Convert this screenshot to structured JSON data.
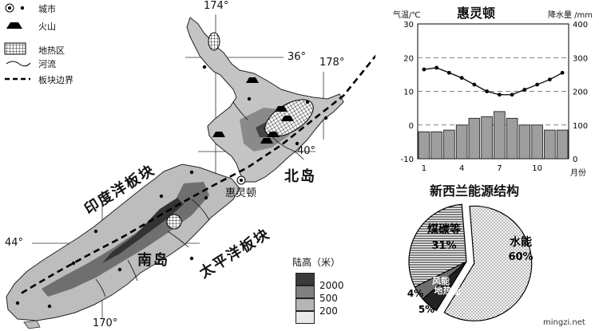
{
  "map": {
    "legend": {
      "city": "城市",
      "volcano": "火山",
      "geothermal": "地热区",
      "river": "河流",
      "plate_boundary": "板块边界"
    },
    "labels": {
      "north_island": "北岛",
      "south_island": "南岛",
      "indian_plate": "印度洋板块",
      "pacific_plate": "太平洋板块",
      "wellington": "惠灵顿"
    },
    "coords": {
      "lon174": "174°",
      "lat36": "36°",
      "lon178": "178°",
      "lat40": "40°",
      "lat44": "44°",
      "lon170": "170°"
    },
    "elevation": {
      "title": "陆高（米）",
      "levels": [
        "2000",
        "500",
        "200"
      ],
      "colors": [
        "#3a3a3a",
        "#808080",
        "#b5b5b5",
        "#e8e8e8"
      ]
    }
  },
  "climate": {
    "title": "惠灵顿",
    "temp_label": "气温/℃",
    "precip_label": "降水量 /mm",
    "month_label": "月份",
    "temp_ticks": [
      "30",
      "20",
      "10",
      "0",
      "-10"
    ],
    "precip_ticks": [
      "400",
      "300",
      "200",
      "100",
      "0"
    ],
    "month_ticks": [
      "1",
      "4",
      "7",
      "10"
    ],
    "chart_data": {
      "type": "bar",
      "categories": [
        "1",
        "2",
        "3",
        "4",
        "5",
        "6",
        "7",
        "8",
        "9",
        "10",
        "11",
        "12"
      ],
      "series": [
        {
          "values": [
            16.5,
            17,
            15.5,
            14,
            12,
            10,
            9,
            9,
            10.5,
            12,
            13.5,
            15.5
          ]
        },
        {
          "values": [
            80,
            80,
            85,
            100,
            120,
            125,
            140,
            120,
            100,
            100,
            85,
            85
          ]
        }
      ],
      "ylim": [
        -10,
        30
      ],
      "y2lim": [
        0,
        400
      ]
    }
  },
  "energy": {
    "title": "新西兰能源结构",
    "chart_data": {
      "type": "pie",
      "slices": [
        {
          "label": "水能",
          "value": 60,
          "pct": "60%"
        },
        {
          "label": "煤碳等",
          "value": 31,
          "pct": "31%"
        },
        {
          "label": "风能",
          "value": 4,
          "pct": "4%"
        },
        {
          "label": "地热能",
          "value": 5,
          "pct": "5%"
        }
      ]
    }
  },
  "watermark": "mingzi.net"
}
